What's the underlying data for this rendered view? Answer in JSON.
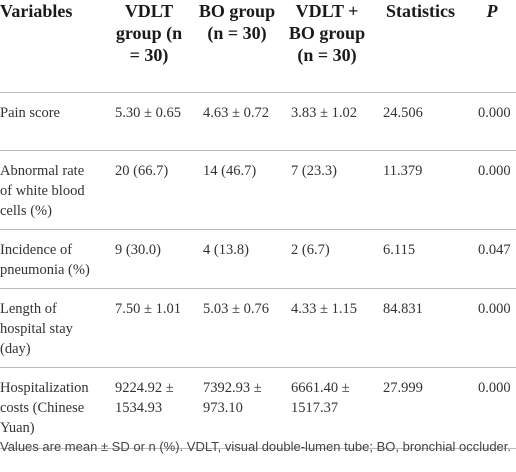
{
  "table": {
    "header": [
      "Variables",
      "VDLT group (n = 30)",
      "BO group (n = 30)",
      "VDLT + BO group (n = 30)",
      "Statistics",
      "P"
    ],
    "rows": [
      [
        "Pain score",
        "5.30 ± 0.65",
        "4.63 ± 0.72",
        "3.83 ± 1.02",
        "24.506",
        "0.000"
      ],
      [
        "Abnormal rate of white blood cells (%)",
        "20 (66.7)",
        "14 (46.7)",
        "7 (23.3)",
        "11.379",
        "0.000"
      ],
      [
        "Incidence of pneumonia (%)",
        "9 (30.0)",
        "4 (13.8)",
        "2 (6.7)",
        "6.115",
        "0.047"
      ],
      [
        "Length of hospital stay (day)",
        "7.50 ± 1.01",
        "5.03 ± 0.76",
        "4.33 ± 1.15",
        "84.831",
        "0.000"
      ],
      [
        "Hospitalization costs (Chinese Yuan)",
        "9224.92 ± 1534.93",
        "7392.93 ± 973.10",
        "6661.40 ± 1517.37",
        "27.999",
        "0.000"
      ]
    ]
  },
  "footnote": "Values are mean ± SD or n (%). VDLT, visual double-lumen tube; BO, bronchial occluder."
}
